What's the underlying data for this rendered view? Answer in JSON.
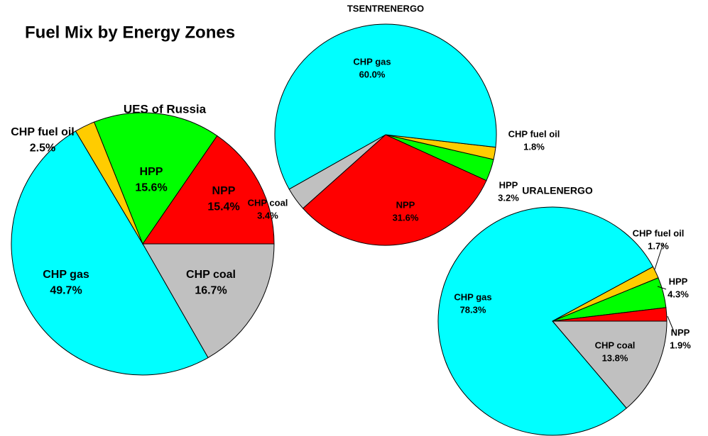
{
  "title": "Fuel Mix by Energy Zones",
  "chart_data": [
    {
      "type": "pie",
      "title": "UES of Russia",
      "categories": [
        "CHP coal",
        "CHP gas",
        "CHP fuel oil",
        "HPP",
        "NPP"
      ],
      "values": [
        16.7,
        49.7,
        2.5,
        15.6,
        15.4
      ],
      "value_labels": [
        "16.7%",
        "49.7%",
        "2.5%",
        "15.6%",
        "15.4%"
      ],
      "colors": [
        "#C0C0C0",
        "#00FFFF",
        "#FFCC00",
        "#00FF00",
        "#FF0000"
      ]
    },
    {
      "type": "pie",
      "title": "TSENTRENERGO",
      "categories": [
        "CHP fuel oil",
        "HPP",
        "NPP",
        "CHP coal",
        "CHP gas"
      ],
      "values": [
        1.8,
        3.2,
        31.6,
        3.4,
        60.0
      ],
      "value_labels": [
        "1.8%",
        "3.2%",
        "31.6%",
        "3.4%",
        "60.0%"
      ],
      "colors": [
        "#FFCC00",
        "#00FF00",
        "#FF0000",
        "#C0C0C0",
        "#00FFFF"
      ]
    },
    {
      "type": "pie",
      "title": "URALENERGO",
      "categories": [
        "CHP coal",
        "CHP gas",
        "CHP fuel oil",
        "HPP",
        "NPP"
      ],
      "values": [
        13.8,
        78.3,
        1.7,
        4.3,
        1.9
      ],
      "value_labels": [
        "13.8%",
        "78.3%",
        "1.7%",
        "4.3%",
        "1.9%"
      ],
      "colors": [
        "#C0C0C0",
        "#00FFFF",
        "#FFCC00",
        "#00FF00",
        "#FF0000"
      ]
    }
  ]
}
